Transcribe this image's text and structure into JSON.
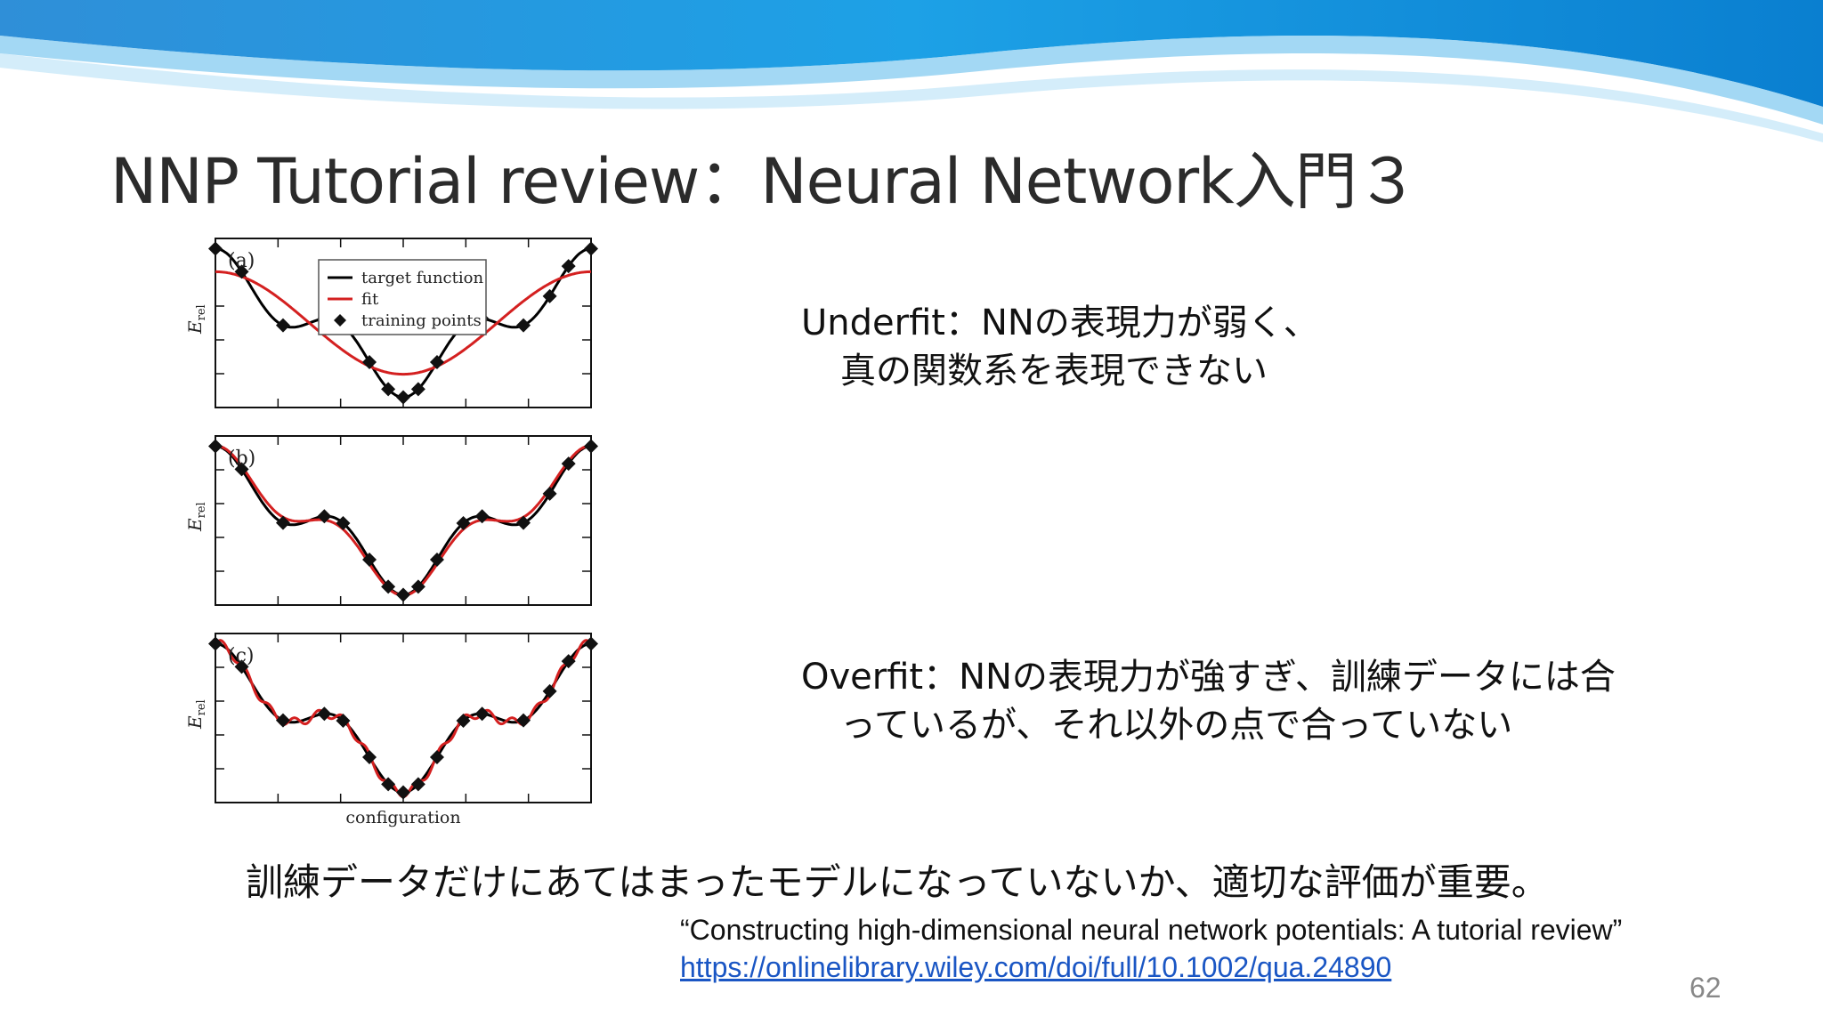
{
  "slide": {
    "title": "NNP Tutorial review：Neural Network入門３",
    "underfit": {
      "line1": "Underfit：NNの表現力が弱く、",
      "line2": "真の関数系を表現できない"
    },
    "overfit": {
      "line1": "Overfit：NNの表現力が強すぎ、訓練データには合",
      "line2": "っているが、それ以外の点で合っていない"
    },
    "summary": "訓練データだけにあてはまったモデルになっていないか、適切な評価が重要。",
    "citation": {
      "title": "“Constructing high-dimensional neural network potentials: A tutorial review”",
      "link": "https://onlinelibrary.wiley.com/doi/full/10.1002/qua.24890"
    },
    "page_number": "62"
  },
  "figure": {
    "panels": [
      {
        "label": "(a)",
        "ylabel": "E",
        "ylabel_sub": "rel"
      },
      {
        "label": "(b)",
        "ylabel": "E",
        "ylabel_sub": "rel"
      },
      {
        "label": "(c)",
        "ylabel": "E",
        "ylabel_sub": "rel"
      }
    ],
    "xlabel": "configuration",
    "legend": {
      "target": "target function",
      "fit": "fit",
      "points": "training points"
    }
  },
  "colors": {
    "target": "#000000",
    "fit": "#d42020",
    "wave_dark": "#0a7fd0",
    "wave_light": "#5ab8ec"
  }
}
